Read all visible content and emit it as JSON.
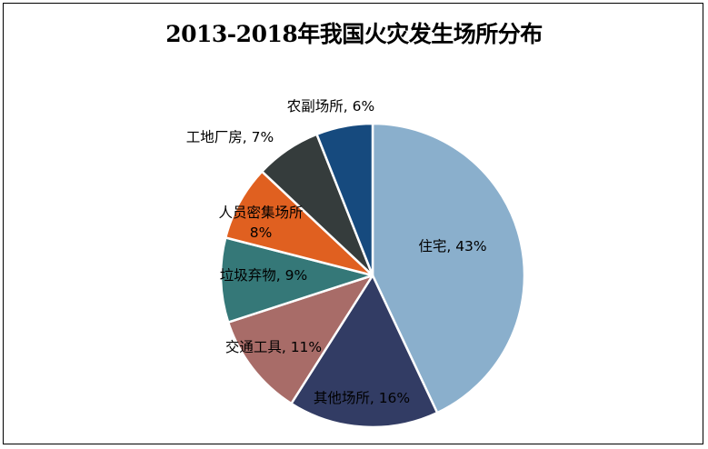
{
  "chart_data": {
    "type": "pie",
    "title": "2013-2018年我国火灾发生场所分布",
    "slices": [
      {
        "label": "住宅",
        "value": 43,
        "display": "住宅, 43%",
        "color": "#8aafcc"
      },
      {
        "label": "其他场所",
        "value": 16,
        "display": "其他场所, 16%",
        "color": "#323c64"
      },
      {
        "label": "交通工具",
        "value": 11,
        "display": "交通工具, 11%",
        "color": "#a86c68"
      },
      {
        "label": "垃圾弃物",
        "value": 9,
        "display": "垃圾弃物, 9%",
        "color": "#357878"
      },
      {
        "label": "人员密集场所",
        "value": 8,
        "display": [
          "人员密集场所",
          "8%"
        ],
        "color": "#e06020"
      },
      {
        "label": "工地厂房",
        "value": 7,
        "display": "工地厂房, 7%",
        "color": "#353c3c"
      },
      {
        "label": "农副场所",
        "value": 6,
        "display": "农副场所, 6%",
        "color": "#164a7e"
      }
    ],
    "start": "12 o'clock",
    "direction": "clockwise",
    "legend": "none",
    "labels": "on and next to slices"
  }
}
